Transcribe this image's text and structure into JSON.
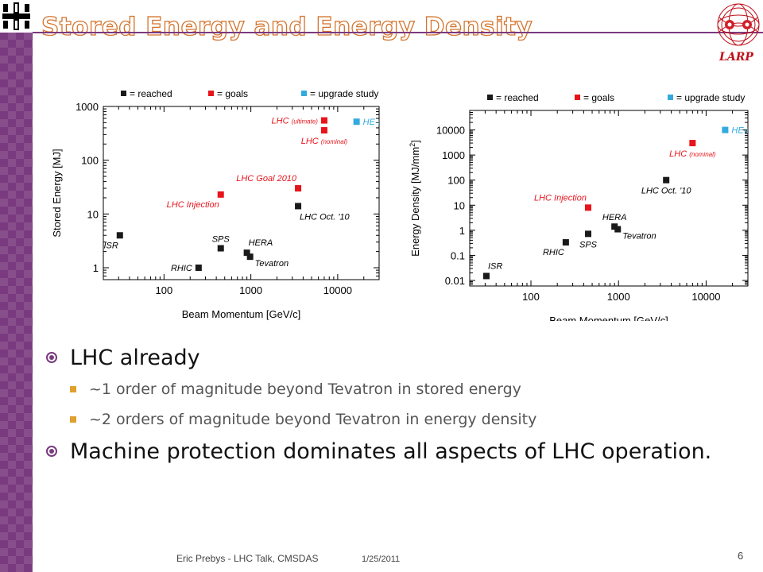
{
  "slide": {
    "title": "Stored Energy and Energy Density",
    "corner_logo": "LARP",
    "bullets": [
      {
        "text": "LHC already",
        "sub": [
          "~1 order of magnitude beyond Tevatron in stored energy",
          "~2 orders of magnitude beyond Tevatron in energy density"
        ]
      },
      {
        "text": "Machine protection dominates all aspects of LHC operation.",
        "sub": []
      }
    ],
    "footer": {
      "author": "Eric Prebys - LHC Talk, CMSDAS",
      "date": "1/25/2011",
      "page": "6"
    }
  },
  "colors": {
    "reached": "#1a1a1a",
    "goals": "#e8141b",
    "upgrade": "#33aadd",
    "purple": "#7a3a7f",
    "title_outline": "#d4742d"
  },
  "chart_data": [
    {
      "type": "scatter",
      "xlabel": "Beam Momentum [GeV/c]",
      "ylabel": "Stored Energy [MJ]",
      "xscale": "log",
      "yscale": "log",
      "xlim": [
        20,
        30000
      ],
      "ylim": [
        0.6,
        1000
      ],
      "xticks": [
        100,
        1000,
        10000
      ],
      "yticks": [
        1,
        10,
        100,
        1000
      ],
      "legend": [
        "= reached",
        "= goals",
        "= upgrade study"
      ],
      "legend_placement": "top",
      "series": [
        {
          "name": "= reached",
          "color": "#1a1a1a",
          "points": [
            {
              "x": 31,
              "y": 4,
              "label": "ISR",
              "pos": "below-left"
            },
            {
              "x": 250,
              "y": 1,
              "label": "RHIC",
              "pos": "left"
            },
            {
              "x": 450,
              "y": 2.3,
              "label": "SPS",
              "pos": "above"
            },
            {
              "x": 900,
              "y": 1.9,
              "label": "HERA",
              "pos": "above-right"
            },
            {
              "x": 980,
              "y": 1.6,
              "label": "Tevatron",
              "pos": "right-below"
            },
            {
              "x": 3500,
              "y": 14,
              "label": "LHC Oct. '10",
              "pos": "below-right"
            }
          ]
        },
        {
          "name": "= goals",
          "color": "#e8141b",
          "points": [
            {
              "x": 450,
              "y": 23,
              "label": "LHC Injection",
              "pos": "below-left"
            },
            {
              "x": 3500,
              "y": 30,
              "label": "LHC Goal 2010",
              "pos": "above-left"
            },
            {
              "x": 7000,
              "y": 550,
              "label": "LHC (ultimate)",
              "pos": "left"
            },
            {
              "x": 7000,
              "y": 360,
              "label": "LHC (nominal)",
              "pos": "below"
            }
          ]
        },
        {
          "name": "= upgrade study",
          "color": "#33aadd",
          "points": [
            {
              "x": 16500,
              "y": 520,
              "label": "HE-LHC",
              "pos": "right"
            }
          ]
        }
      ]
    },
    {
      "type": "scatter",
      "xlabel": "Beam Momentum [GeV/c]",
      "ylabel": "Energy Density [MJ/mm2]",
      "xscale": "log",
      "yscale": "log",
      "xlim": [
        20,
        30000
      ],
      "ylim": [
        0.006,
        60000
      ],
      "xticks": [
        100,
        1000,
        10000
      ],
      "yticks": [
        0.01,
        0.1,
        1,
        10,
        100,
        1000,
        10000
      ],
      "legend": [
        "= reached",
        "= goals",
        "= upgrade study"
      ],
      "legend_placement": "top",
      "series": [
        {
          "name": "= reached",
          "color": "#1a1a1a",
          "points": [
            {
              "x": 31,
              "y": 0.015,
              "label": "ISR",
              "pos": "above-right"
            },
            {
              "x": 250,
              "y": 0.33,
              "label": "RHIC",
              "pos": "below-left"
            },
            {
              "x": 450,
              "y": 0.72,
              "label": "SPS",
              "pos": "below"
            },
            {
              "x": 900,
              "y": 1.4,
              "label": "HERA",
              "pos": "above"
            },
            {
              "x": 980,
              "y": 1.1,
              "label": "Tevatron",
              "pos": "right-below"
            },
            {
              "x": 3500,
              "y": 100,
              "label": "LHC Oct. '10",
              "pos": "below"
            }
          ]
        },
        {
          "name": "= goals",
          "color": "#e8141b",
          "points": [
            {
              "x": 450,
              "y": 8,
              "label": "LHC Injection",
              "pos": "above-left"
            },
            {
              "x": 7000,
              "y": 3000,
              "label": "LHC (nominal)",
              "pos": "below"
            }
          ]
        },
        {
          "name": "= upgrade study",
          "color": "#33aadd",
          "points": [
            {
              "x": 16500,
              "y": 10000,
              "label": "HE-LHC",
              "pos": "right"
            }
          ]
        }
      ]
    }
  ]
}
